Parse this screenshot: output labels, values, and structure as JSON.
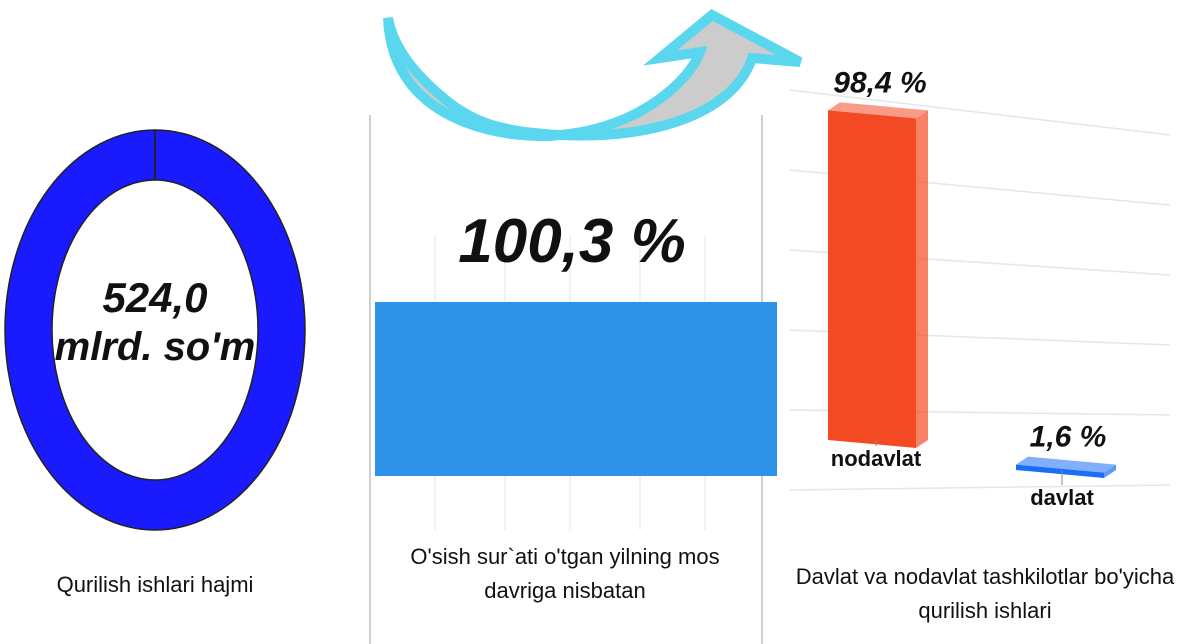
{
  "chart_data": [
    {
      "type": "donut",
      "values": [
        524.0
      ],
      "value_labels": [
        "524,0"
      ],
      "unit": "mlrd. so'm",
      "color": "#1a1aff",
      "caption": "Qurilish ishlari hajmi"
    },
    {
      "type": "hbar",
      "values": [
        100.3
      ],
      "value_labels": [
        "100,3 %"
      ],
      "color": "#2e93e8",
      "xlim": [
        0,
        100.3
      ],
      "grid": true,
      "caption": "O'sish sur`ati o'tgan yilning mos davriga nisbatan"
    },
    {
      "type": "bar3d",
      "categories": [
        "nodavlat",
        "davlat"
      ],
      "values": [
        98.4,
        1.6
      ],
      "value_labels": [
        "98,4 %",
        "1,6 %"
      ],
      "colors": [
        "#f44a24",
        "#1a6df5"
      ],
      "ylim": [
        0,
        100
      ],
      "grid": true,
      "caption": "Davlat va nodavlat tashkilotlar bo'yicha qurilish ishlari"
    }
  ]
}
